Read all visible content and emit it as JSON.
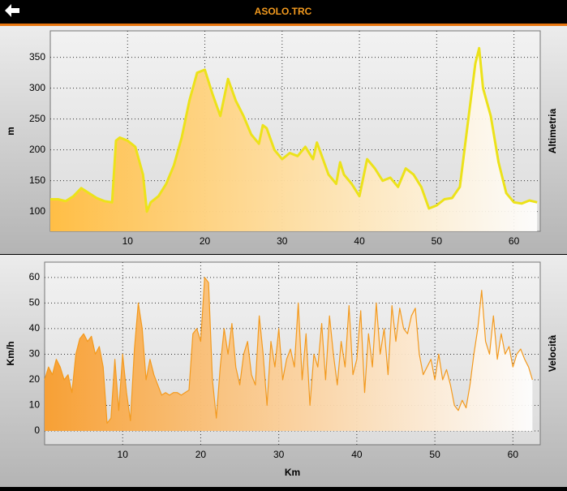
{
  "screen_title": "ASOLO.TRC",
  "chart_data": [
    {
      "type": "area",
      "title": "Altimetria",
      "ylabel": "m",
      "color": "#ece21a",
      "fill_color": "#ffbe45",
      "grid": true,
      "xlim": [
        0,
        63.4
      ],
      "ylim": [
        68,
        393
      ],
      "xticks": [
        10,
        20,
        30,
        40,
        50,
        60
      ],
      "yticks": [
        100,
        150,
        200,
        250,
        300,
        350
      ],
      "x": [
        0,
        1,
        2,
        3,
        4,
        5,
        6,
        7,
        8,
        8.5,
        9,
        10,
        11,
        12,
        12.5,
        13,
        14,
        15,
        16,
        17,
        18,
        19,
        20,
        21,
        22,
        23,
        24,
        25,
        26,
        27,
        27.5,
        28,
        29,
        30,
        31,
        32,
        33,
        34,
        34.5,
        35,
        36,
        37,
        37.5,
        38,
        39,
        40,
        41,
        42,
        43,
        44,
        45,
        46,
        47,
        48,
        49,
        50,
        51,
        52,
        53,
        54,
        55,
        55.5,
        56,
        57,
        58,
        59,
        60,
        61,
        62,
        63
      ],
      "values": [
        120,
        120,
        117,
        125,
        138,
        130,
        122,
        117,
        115,
        215,
        220,
        215,
        205,
        160,
        100,
        115,
        125,
        145,
        175,
        220,
        280,
        325,
        330,
        290,
        255,
        315,
        280,
        255,
        225,
        210,
        240,
        235,
        200,
        185,
        195,
        190,
        205,
        185,
        212,
        195,
        160,
        145,
        180,
        160,
        145,
        125,
        185,
        170,
        150,
        155,
        140,
        170,
        160,
        140,
        105,
        110,
        120,
        122,
        140,
        240,
        340,
        365,
        300,
        255,
        180,
        130,
        115,
        113,
        118,
        115
      ]
    },
    {
      "type": "area",
      "title": "Velocità",
      "ylabel": "Km/h",
      "xlabel": "Km",
      "color": "#f39a1e",
      "fill_color": "#f7a035",
      "grid": true,
      "xlim": [
        0,
        63.5
      ],
      "ylim": [
        -5.4,
        66
      ],
      "xticks": [
        10,
        20,
        30,
        40,
        50,
        60
      ],
      "yticks": [
        0,
        10,
        20,
        30,
        40,
        50,
        60
      ],
      "x": [
        0,
        0.5,
        1,
        1.5,
        2,
        2.5,
        3,
        3.5,
        4,
        4.5,
        5,
        5.5,
        6,
        6.5,
        7,
        7.5,
        8,
        8.5,
        9,
        9.5,
        10,
        10.5,
        11,
        11.5,
        12,
        12.5,
        13,
        13.5,
        14,
        14.5,
        15,
        15.5,
        16,
        16.5,
        17,
        17.5,
        18,
        18.5,
        19,
        19.5,
        20,
        20.5,
        21,
        21.5,
        22,
        22.5,
        23,
        23.5,
        24,
        24.5,
        25,
        25.5,
        26,
        26.5,
        27,
        27.5,
        28,
        28.5,
        29,
        29.5,
        30,
        30.5,
        31,
        31.5,
        32,
        32.5,
        33,
        33.5,
        34,
        34.5,
        35,
        35.5,
        36,
        36.5,
        37,
        37.5,
        38,
        38.5,
        39,
        39.5,
        40,
        40.5,
        41,
        41.5,
        42,
        42.5,
        43,
        43.5,
        44,
        44.5,
        45,
        45.5,
        46,
        46.5,
        47,
        47.5,
        48,
        48.5,
        49,
        49.5,
        50,
        50.5,
        51,
        51.5,
        52,
        52.5,
        53,
        53.5,
        54,
        54.5,
        55,
        55.5,
        56,
        56.5,
        57,
        57.5,
        58,
        58.5,
        59,
        59.5,
        60,
        60.5,
        61,
        61.5,
        62,
        62.5
      ],
      "values": [
        20,
        25,
        22,
        28,
        25,
        20,
        22,
        15,
        30,
        36,
        38,
        35,
        37,
        30,
        33,
        25,
        3,
        5,
        28,
        8,
        30,
        15,
        4,
        32,
        50,
        40,
        20,
        28,
        22,
        18,
        14,
        15,
        14,
        15,
        15,
        14,
        15,
        16,
        38,
        40,
        35,
        60,
        58,
        20,
        5,
        25,
        40,
        30,
        42,
        25,
        18,
        30,
        35,
        22,
        18,
        45,
        30,
        10,
        35,
        25,
        40,
        20,
        28,
        32,
        25,
        50,
        20,
        38,
        10,
        30,
        25,
        42,
        20,
        45,
        30,
        18,
        35,
        25,
        49,
        22,
        28,
        47,
        15,
        38,
        25,
        50,
        30,
        40,
        22,
        49,
        35,
        48,
        40,
        38,
        45,
        48,
        30,
        22,
        25,
        28,
        20,
        30,
        20,
        24,
        18,
        10,
        8,
        12,
        9,
        18,
        30,
        40,
        55,
        35,
        30,
        45,
        28,
        38,
        30,
        33,
        25,
        30,
        32,
        28,
        25,
        20
      ]
    }
  ]
}
